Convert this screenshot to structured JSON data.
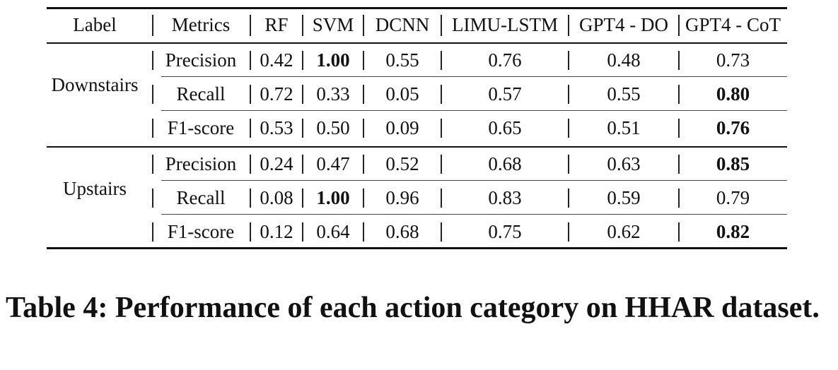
{
  "table": {
    "header": [
      "Label",
      "Metrics",
      "RF",
      "SVM",
      "DCNN",
      "LIMU-LSTM",
      "GPT4 - DO",
      "GPT4 - CoT"
    ],
    "groups": [
      {
        "label": "Downstairs",
        "rows": [
          {
            "metric": "Precision",
            "values": [
              "0.42",
              "1.00",
              "0.55",
              "0.76",
              "0.48",
              "0.73"
            ],
            "bold": [
              false,
              true,
              false,
              false,
              false,
              false
            ]
          },
          {
            "metric": "Recall",
            "values": [
              "0.72",
              "0.33",
              "0.05",
              "0.57",
              "0.55",
              "0.80"
            ],
            "bold": [
              false,
              false,
              false,
              false,
              false,
              true
            ]
          },
          {
            "metric": "F1-score",
            "values": [
              "0.53",
              "0.50",
              "0.09",
              "0.65",
              "0.51",
              "0.76"
            ],
            "bold": [
              false,
              false,
              false,
              false,
              false,
              true
            ]
          }
        ]
      },
      {
        "label": "Upstairs",
        "rows": [
          {
            "metric": "Precision",
            "values": [
              "0.24",
              "0.47",
              "0.52",
              "0.68",
              "0.63",
              "0.85"
            ],
            "bold": [
              false,
              false,
              false,
              false,
              false,
              true
            ]
          },
          {
            "metric": "Recall",
            "values": [
              "0.08",
              "1.00",
              "0.96",
              "0.83",
              "0.59",
              "0.79"
            ],
            "bold": [
              false,
              true,
              false,
              false,
              false,
              false
            ]
          },
          {
            "metric": "F1-score",
            "values": [
              "0.12",
              "0.64",
              "0.68",
              "0.75",
              "0.62",
              "0.82"
            ],
            "bold": [
              false,
              false,
              false,
              false,
              false,
              true
            ]
          }
        ]
      }
    ]
  },
  "caption": {
    "text": "Table 4: Performance of each action category on HHAR dataset."
  }
}
